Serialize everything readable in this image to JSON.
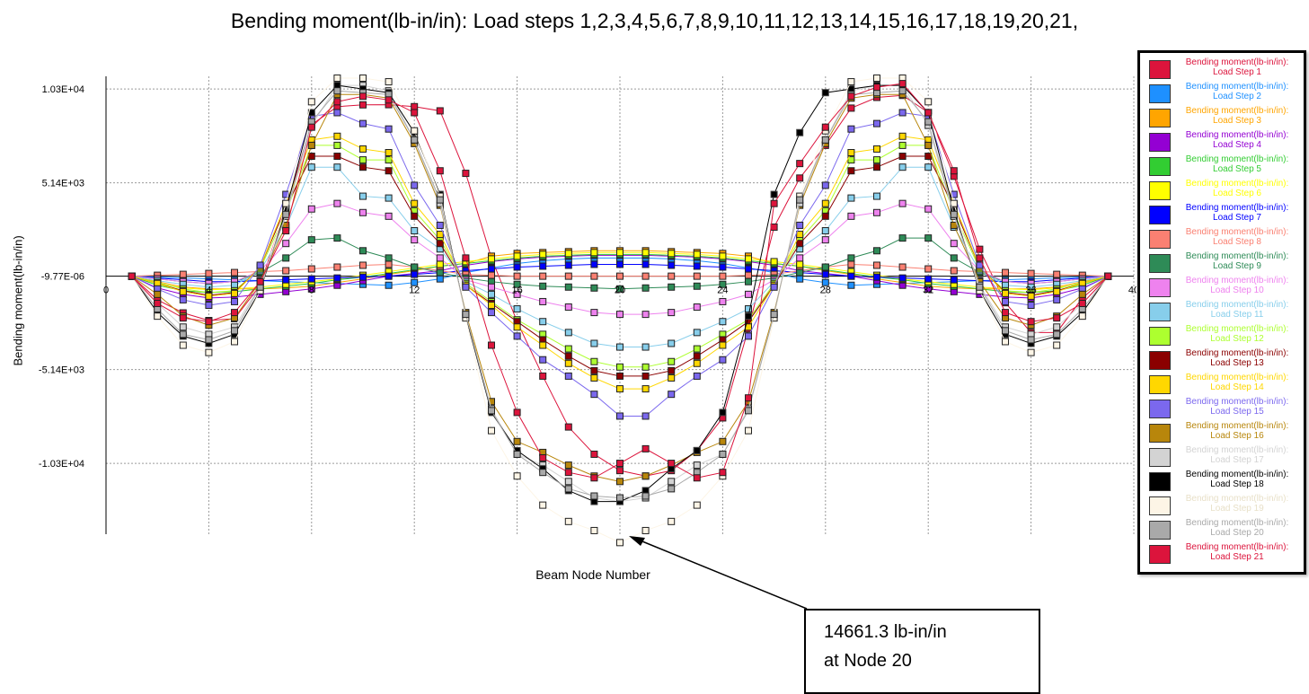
{
  "title": "Bending moment(lb-in/in): Load steps  1,2,3,4,5,6,7,8,9,10,11,12,13,14,15,16,17,18,19,20,21,",
  "annotation": {
    "line1": "14661.3 lb-in/in",
    "line2": "at Node 20"
  },
  "colors": {
    "grid": "#9a9a9a",
    "axis": "#000000"
  },
  "chart_data": {
    "type": "line",
    "title": "Bending moment(lb-in/in): Load steps  1,2,3,4,5,6,7,8,9,10,11,12,13,14,15,16,17,18,19,20,21,",
    "xlabel": "Beam Node Number",
    "ylabel": "Bending moment(lb-in/in)",
    "xlim": [
      0,
      40
    ],
    "ylim": [
      -14200,
      11000
    ],
    "x_ticks": [
      0,
      4,
      8,
      12,
      16,
      20,
      24,
      28,
      32,
      36,
      40
    ],
    "x_tick_labels": [
      "0",
      "4",
      "8",
      "12",
      "16",
      "20",
      "24",
      "28",
      "32",
      "36",
      "40"
    ],
    "y_ticks": [
      10300,
      5140,
      0,
      -5140,
      -10300
    ],
    "y_tick_labels": [
      "1.03E+04",
      "5.14E+03",
      "-9.77E-06",
      "-5.14E+03",
      "-1.03E+04"
    ],
    "grid": true,
    "legend_position": "right",
    "x": [
      1,
      2,
      3,
      4,
      5,
      6,
      7,
      8,
      9,
      10,
      11,
      12,
      13,
      14,
      15,
      16,
      17,
      18,
      19,
      20,
      21,
      22,
      23,
      24,
      25,
      26,
      27,
      28,
      29,
      30,
      31,
      32,
      33,
      34,
      35,
      36,
      37,
      38,
      39
    ],
    "series": [
      {
        "name": "Bending moment(lb-in/in): Load Step 1",
        "color": "#DC143C",
        "values": [
          0,
          -1300,
          -2020,
          -2440,
          -2340,
          -500,
          3800,
          8340,
          9330,
          9430,
          9440,
          9330,
          9100,
          5660,
          1000,
          -2500,
          -5500,
          -8300,
          -9800,
          -10700,
          -11000,
          -10700,
          -9600,
          -7800,
          -2900,
          2700,
          5400,
          7200,
          9250,
          9840,
          9950,
          9010,
          5500,
          1480,
          -1460,
          -3100,
          -3100,
          -1200,
          0
        ]
      },
      {
        "name": "Bending moment(lb-in/in): Load Step 2",
        "color": "#1E90FF",
        "values": [
          0,
          -50,
          -100,
          -150,
          -200,
          -250,
          -300,
          -350,
          -400,
          -450,
          -500,
          -350,
          -150,
          200,
          450,
          700,
          850,
          950,
          1000,
          1000,
          1000,
          950,
          850,
          700,
          450,
          200,
          -150,
          -350,
          -500,
          -450,
          -400,
          -350,
          -300,
          -250,
          -200,
          -150,
          -100,
          -50,
          0
        ]
      },
      {
        "name": "Bending moment(lb-in/in): Load Step 3",
        "color": "#FFA500",
        "values": [
          0,
          -300,
          -600,
          -700,
          -700,
          -700,
          -650,
          -550,
          -350,
          -150,
          100,
          300,
          550,
          700,
          1100,
          1250,
          1300,
          1350,
          1400,
          1400,
          1400,
          1350,
          1300,
          1250,
          1100,
          700,
          550,
          300,
          100,
          -150,
          -350,
          -550,
          -650,
          -700,
          -700,
          -700,
          -600,
          -300,
          0
        ]
      },
      {
        "name": "Bending moment(lb-in/in): Load Step 4",
        "color": "#9400D3",
        "values": [
          0,
          -650,
          -1000,
          -1200,
          -1150,
          -1000,
          -850,
          -700,
          -500,
          -250,
          0,
          150,
          300,
          600,
          800,
          950,
          1050,
          1100,
          1150,
          1150,
          1150,
          1100,
          1050,
          950,
          800,
          600,
          300,
          150,
          0,
          -250,
          -500,
          -700,
          -850,
          -1000,
          -1150,
          -1200,
          -1000,
          -650,
          0
        ]
      },
      {
        "name": "Bending moment(lb-in/in): Load Step 5",
        "color": "#32CD32",
        "values": [
          0,
          -500,
          -800,
          -900,
          -850,
          -700,
          -550,
          -400,
          -200,
          -50,
          150,
          350,
          550,
          700,
          850,
          1000,
          1100,
          1150,
          1200,
          1200,
          1200,
          1150,
          1100,
          1000,
          850,
          700,
          550,
          350,
          150,
          -50,
          -200,
          -400,
          -550,
          -700,
          -850,
          -900,
          -800,
          -500,
          0
        ]
      },
      {
        "name": "Bending moment(lb-in/in): Load Step 6",
        "color": "#FFFF00",
        "values": [
          0,
          -400,
          -650,
          -750,
          -700,
          -600,
          -450,
          -300,
          -150,
          50,
          250,
          450,
          650,
          800,
          950,
          1100,
          1200,
          1250,
          1300,
          1300,
          1300,
          1250,
          1200,
          1100,
          950,
          800,
          650,
          450,
          250,
          50,
          -150,
          -300,
          -450,
          -600,
          -700,
          -750,
          -650,
          -400,
          0
        ]
      },
      {
        "name": "Bending moment(lb-in/in): Load Step 7",
        "color": "#0000FF",
        "values": [
          0,
          -100,
          -200,
          -300,
          -300,
          -250,
          -200,
          -150,
          -100,
          -50,
          0,
          100,
          200,
          300,
          400,
          500,
          550,
          600,
          650,
          650,
          650,
          600,
          550,
          500,
          400,
          300,
          200,
          100,
          0,
          -50,
          -100,
          -150,
          -200,
          -250,
          -300,
          -300,
          -200,
          -100,
          0
        ]
      },
      {
        "name": "Bending moment(lb-in/in): Load Step 8",
        "color": "#FA8072",
        "values": [
          0,
          50,
          100,
          150,
          200,
          250,
          300,
          400,
          500,
          600,
          650,
          500,
          300,
          100,
          50,
          0,
          0,
          0,
          0,
          0,
          0,
          0,
          0,
          0,
          50,
          100,
          300,
          500,
          650,
          600,
          500,
          400,
          300,
          250,
          200,
          150,
          100,
          50,
          0
        ]
      },
      {
        "name": "Bending moment(lb-in/in): Load Step 9",
        "color": "#2E8B57",
        "values": [
          0,
          -150,
          -300,
          -400,
          -300,
          200,
          1000,
          2000,
          2100,
          1400,
          1000,
          500,
          200,
          -100,
          -300,
          -450,
          -550,
          -600,
          -650,
          -700,
          -650,
          -600,
          -550,
          -450,
          -300,
          -100,
          200,
          500,
          1000,
          1400,
          2100,
          2100,
          1000,
          200,
          -300,
          -400,
          -300,
          -150,
          0
        ]
      },
      {
        "name": "Bending moment(lb-in/in): Load Step 10",
        "color": "#EE82EE",
        "values": [
          0,
          -150,
          -300,
          -400,
          -300,
          300,
          1800,
          3700,
          4000,
          3500,
          3300,
          2000,
          1000,
          -200,
          -600,
          -1000,
          -1400,
          -1700,
          -2000,
          -2100,
          -2100,
          -2000,
          -1700,
          -1400,
          -1000,
          -200,
          1000,
          2000,
          3300,
          3500,
          4000,
          3700,
          1800,
          300,
          -300,
          -400,
          -300,
          -150,
          0
        ]
      },
      {
        "name": "Bending moment(lb-in/in): Load Step 11",
        "color": "#87CEEB",
        "values": [
          0,
          -250,
          -450,
          -600,
          -500,
          300,
          2700,
          6000,
          6000,
          4400,
          4300,
          2500,
          1500,
          -300,
          -1000,
          -1800,
          -2500,
          -3100,
          -3700,
          -3900,
          -3900,
          -3700,
          -3100,
          -2500,
          -1800,
          -300,
          1500,
          2500,
          4300,
          4400,
          6000,
          6000,
          2700,
          300,
          -500,
          -600,
          -450,
          -250,
          0
        ]
      },
      {
        "name": "Bending moment(lb-in/in): Load Step 12",
        "color": "#ADFF2F",
        "values": [
          0,
          -350,
          -700,
          -900,
          -800,
          400,
          3500,
          7200,
          7200,
          6400,
          6400,
          3600,
          2000,
          -400,
          -1400,
          -2400,
          -3200,
          -4000,
          -4700,
          -5000,
          -5000,
          -4700,
          -4000,
          -3200,
          -2400,
          -400,
          2000,
          3600,
          6400,
          6400,
          7200,
          7200,
          3500,
          400,
          -800,
          -900,
          -700,
          -350,
          0
        ]
      },
      {
        "name": "Bending moment(lb-in/in): Load Step 13",
        "color": "#8B0000",
        "values": [
          0,
          -400,
          -800,
          -1050,
          -900,
          500,
          3800,
          6600,
          6600,
          6000,
          5800,
          3300,
          1800,
          -500,
          -1500,
          -2500,
          -3500,
          -4400,
          -5200,
          -5500,
          -5500,
          -5200,
          -4400,
          -3500,
          -2500,
          -500,
          1800,
          3300,
          5800,
          6000,
          6600,
          6600,
          3800,
          500,
          -900,
          -1050,
          -800,
          -400,
          0
        ]
      },
      {
        "name": "Bending moment(lb-in/in): Load Step 14",
        "color": "#FFD700",
        "values": [
          0,
          -400,
          -850,
          -1100,
          -950,
          500,
          4000,
          7500,
          7700,
          7000,
          6800,
          4000,
          2300,
          -500,
          -1600,
          -2800,
          -3800,
          -4800,
          -5600,
          -6200,
          -6200,
          -5600,
          -4800,
          -3800,
          -2800,
          -500,
          2300,
          4000,
          6800,
          7000,
          7700,
          7500,
          4000,
          500,
          -950,
          -1100,
          -850,
          -400,
          0
        ]
      },
      {
        "name": "Bending moment(lb-in/in): Load Step 15",
        "color": "#7B68EE",
        "values": [
          0,
          -700,
          -1300,
          -1600,
          -1400,
          600,
          4500,
          8800,
          9000,
          8400,
          8100,
          5000,
          2800,
          -600,
          -2000,
          -3300,
          -4600,
          -5500,
          -6500,
          -7700,
          -7700,
          -6500,
          -5500,
          -4600,
          -3300,
          -600,
          2800,
          5000,
          8100,
          8400,
          9000,
          8800,
          4500,
          600,
          -1400,
          -1600,
          -1300,
          -700,
          0
        ]
      },
      {
        "name": "Bending moment(lb-in/in): Load Step 16",
        "color": "#B8860B",
        "values": [
          0,
          -1000,
          -2200,
          -2700,
          -2300,
          -300,
          2800,
          7200,
          10000,
          10000,
          9800,
          7300,
          3900,
          -2000,
          -6900,
          -9100,
          -9700,
          -10400,
          -11000,
          -11300,
          -11000,
          -10400,
          -9700,
          -9100,
          -6900,
          -2000,
          3900,
          7300,
          9800,
          10000,
          10000,
          7200,
          2800,
          -300,
          -2300,
          -2700,
          -2200,
          -1000,
          0
        ]
      },
      {
        "name": "Bending moment(lb-in/in): Load Step 17",
        "color": "#D3D3D3",
        "values": [
          0,
          -1500,
          -2800,
          -3200,
          -2800,
          -500,
          3300,
          8300,
          10500,
          10500,
          10200,
          7500,
          4000,
          -2100,
          -7300,
          -9800,
          -10400,
          -11300,
          -12200,
          -12400,
          -12200,
          -11300,
          -10400,
          -9800,
          -7300,
          -2100,
          4000,
          7500,
          10200,
          10500,
          10500,
          8300,
          3300,
          -500,
          -2800,
          -3200,
          -2800,
          -1500,
          0
        ]
      },
      {
        "name": "Bending moment(lb-in/in): Load Step 18",
        "color": "#000000",
        "values": [
          0,
          -2000,
          -3300,
          -3700,
          -3200,
          -800,
          3600,
          9000,
          10500,
          10300,
          10100,
          7900,
          4500,
          -2200,
          -7500,
          -9600,
          -10600,
          -11800,
          -12400,
          -12400,
          -11800,
          -10600,
          -9600,
          -7500,
          -2200,
          4500,
          7900,
          10100,
          10300,
          10500,
          10500,
          9000,
          3600,
          -800,
          -3200,
          -3700,
          -3300,
          -2000,
          0
        ]
      },
      {
        "name": "Bending moment(lb-in/in): Load Step 19",
        "color": "#FDF5E6",
        "values": [
          0,
          -2200,
          -3800,
          -4200,
          -3600,
          -800,
          4000,
          9600,
          10900,
          10900,
          10700,
          8000,
          4400,
          -2300,
          -8500,
          -11000,
          -12600,
          -13500,
          -14000,
          -14661.3,
          -14000,
          -13500,
          -12600,
          -11000,
          -8500,
          -2300,
          4400,
          8000,
          10700,
          10900,
          10900,
          9600,
          4000,
          -800,
          -3600,
          -4200,
          -3800,
          -2200,
          0
        ]
      },
      {
        "name": "Bending moment(lb-in/in): Load Step 20",
        "color": "#A9A9A9",
        "values": [
          0,
          -1800,
          -3200,
          -3500,
          -3000,
          -600,
          3400,
          8500,
          10200,
          10100,
          10000,
          7500,
          4200,
          -2100,
          -7400,
          -9800,
          -10800,
          -11700,
          -12100,
          -12200,
          -12100,
          -11700,
          -10800,
          -9800,
          -7400,
          -2100,
          4200,
          7500,
          10000,
          10100,
          10200,
          8500,
          3400,
          -600,
          -3000,
          -3500,
          -3200,
          -1800,
          0
        ]
      },
      {
        "name": "Bending moment(lb-in/in): Load Step 21",
        "color": "#DC143C",
        "values": [
          0,
          -1500,
          -2300,
          -2500,
          -2000,
          -300,
          2500,
          8200,
          9600,
          9900,
          9700,
          9000,
          5800,
          1000,
          -3800,
          -7500,
          -10000,
          -10800,
          -11100,
          -10300,
          -9500,
          -10300,
          -11100,
          -10800,
          -6700,
          4000,
          6200,
          8200,
          9900,
          10400,
          10600,
          9000,
          5800,
          1000,
          -2000,
          -2500,
          -2300,
          -1500,
          0
        ]
      }
    ]
  }
}
